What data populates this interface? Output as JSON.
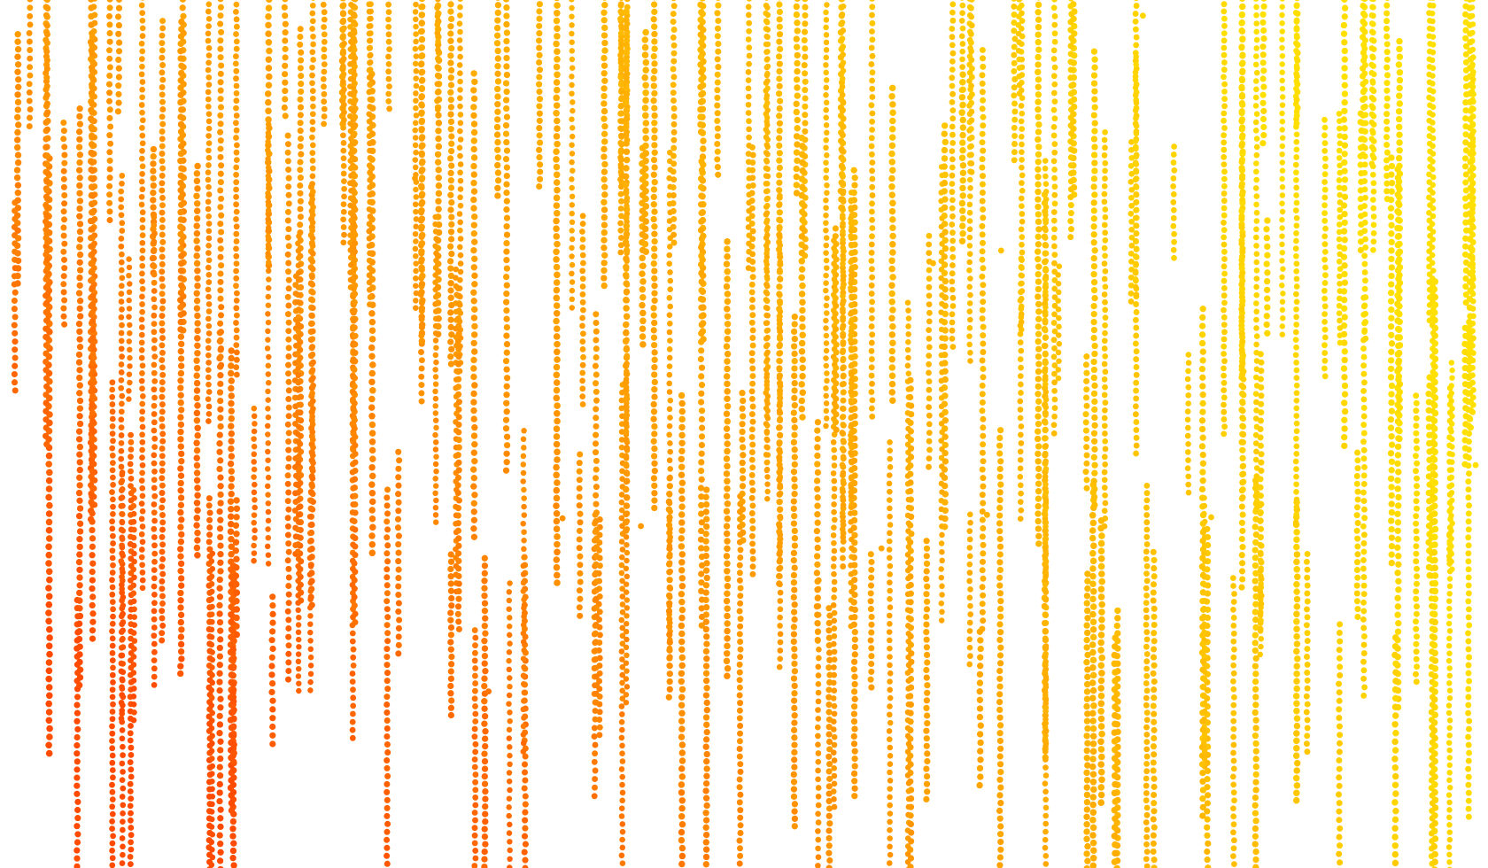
{
  "artwork": {
    "kind": "generative dot rain",
    "background_color": "#ffffff",
    "palette": [
      "#ffe000",
      "#ffc800",
      "#ffad00",
      "#ff9400",
      "#ff6a00",
      "#ff4a00"
    ],
    "mark": "dot"
  }
}
